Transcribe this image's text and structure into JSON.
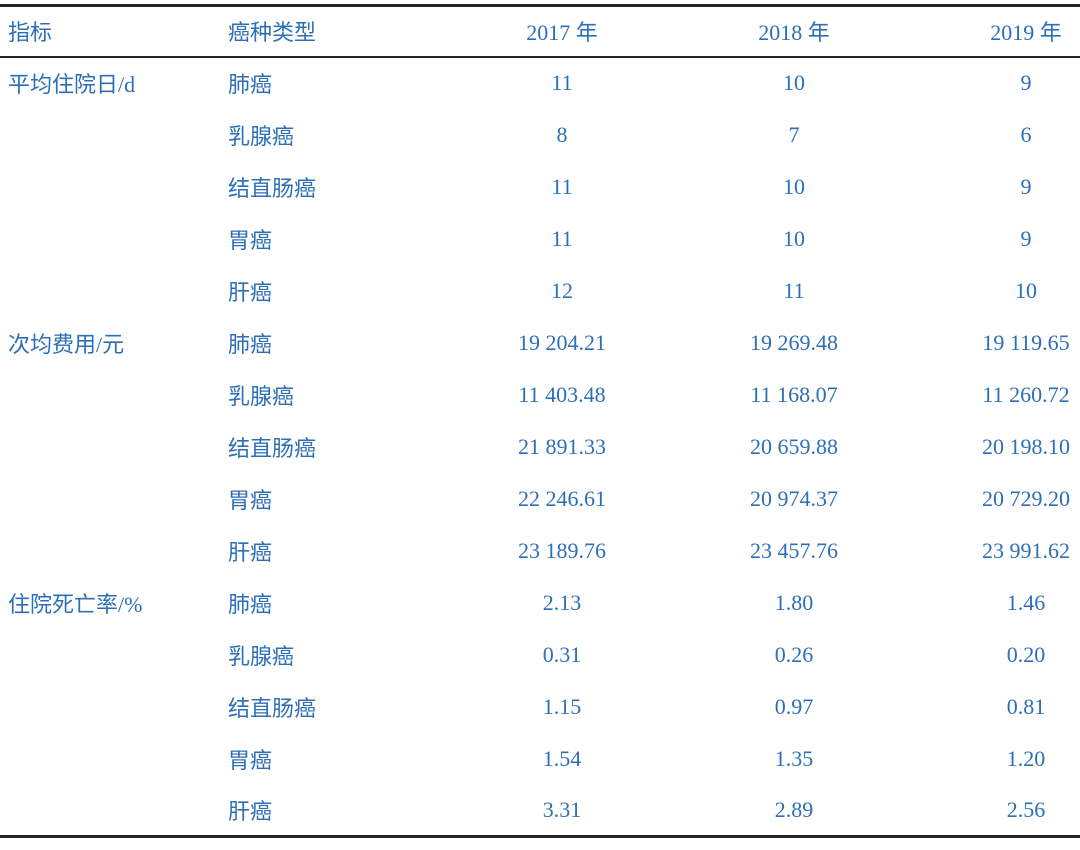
{
  "colors": {
    "text_blue": "#2d6fb7",
    "rule_line": "#262626",
    "background": "#ffffff"
  },
  "table": {
    "headers": {
      "indicator": "指标",
      "cancer_type": "癌种类型",
      "year_2017": "2017 年",
      "year_2018": "2018 年",
      "year_2019": "2019 年"
    },
    "sections": [
      {
        "indicator": "平均住院日/d",
        "rows": [
          {
            "type": "肺癌",
            "y2017": "11",
            "y2018": "10",
            "y2019": "9"
          },
          {
            "type": "乳腺癌",
            "y2017": "8",
            "y2018": "7",
            "y2019": "6"
          },
          {
            "type": "结直肠癌",
            "y2017": "11",
            "y2018": "10",
            "y2019": "9"
          },
          {
            "type": "胃癌",
            "y2017": "11",
            "y2018": "10",
            "y2019": "9"
          },
          {
            "type": "肝癌",
            "y2017": "12",
            "y2018": "11",
            "y2019": "10"
          }
        ]
      },
      {
        "indicator": "次均费用/元",
        "rows": [
          {
            "type": "肺癌",
            "y2017": "19 204.21",
            "y2018": "19 269.48",
            "y2019": "19 119.65"
          },
          {
            "type": "乳腺癌",
            "y2017": "11 403.48",
            "y2018": "11 168.07",
            "y2019": "11 260.72"
          },
          {
            "type": "结直肠癌",
            "y2017": "21 891.33",
            "y2018": "20 659.88",
            "y2019": "20 198.10"
          },
          {
            "type": "胃癌",
            "y2017": "22 246.61",
            "y2018": "20 974.37",
            "y2019": "20 729.20"
          },
          {
            "type": "肝癌",
            "y2017": "23 189.76",
            "y2018": "23 457.76",
            "y2019": "23 991.62"
          }
        ]
      },
      {
        "indicator": "住院死亡率/%",
        "rows": [
          {
            "type": "肺癌",
            "y2017": "2.13",
            "y2018": "1.80",
            "y2019": "1.46"
          },
          {
            "type": "乳腺癌",
            "y2017": "0.31",
            "y2018": "0.26",
            "y2019": "0.20"
          },
          {
            "type": "结直肠癌",
            "y2017": "1.15",
            "y2018": "0.97",
            "y2019": "0.81"
          },
          {
            "type": "胃癌",
            "y2017": "1.54",
            "y2018": "1.35",
            "y2019": "1.20"
          },
          {
            "type": "肝癌",
            "y2017": "3.31",
            "y2018": "2.89",
            "y2019": "2.56"
          }
        ]
      }
    ]
  }
}
